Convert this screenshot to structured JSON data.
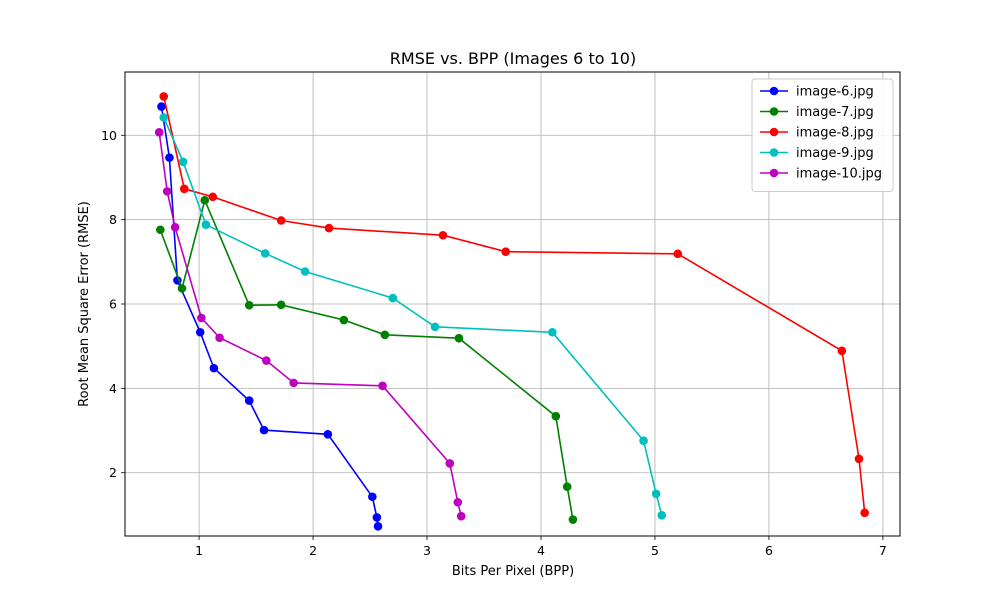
{
  "chart_data": {
    "type": "line",
    "title": "RMSE vs. BPP (Images 6 to 10)",
    "xlabel": "Bits Per Pixel (BPP)",
    "ylabel": "Root Mean Square Error (RMSE)",
    "xlim": [
      0.35,
      7.15
    ],
    "ylim": [
      0.5,
      11.5
    ],
    "xticks": [
      1,
      2,
      3,
      4,
      5,
      6,
      7
    ],
    "yticks": [
      2,
      4,
      6,
      8,
      10
    ],
    "grid": true,
    "legend_position": "top-right",
    "series": [
      {
        "name": "image-6.jpg",
        "color": "#0000ff",
        "x": [
          0.67,
          0.74,
          0.81,
          1.01,
          1.13,
          1.44,
          1.57,
          2.13,
          2.52,
          2.56,
          2.57
        ],
        "y": [
          10.68,
          9.47,
          6.56,
          5.33,
          4.48,
          3.71,
          3.01,
          2.91,
          1.43,
          0.94,
          0.73
        ]
      },
      {
        "name": "image-7.jpg",
        "color": "#008000",
        "x": [
          0.66,
          0.85,
          1.05,
          1.44,
          1.72,
          2.27,
          2.63,
          3.28,
          4.13,
          4.23,
          4.28
        ],
        "y": [
          7.76,
          6.37,
          8.46,
          5.97,
          5.98,
          5.62,
          5.27,
          5.19,
          3.34,
          1.67,
          0.89
        ]
      },
      {
        "name": "image-8.jpg",
        "color": "#ff0000",
        "x": [
          0.69,
          0.87,
          1.12,
          1.72,
          2.14,
          3.14,
          3.69,
          5.2,
          6.64,
          6.79,
          6.84
        ],
        "y": [
          10.92,
          8.73,
          8.54,
          7.98,
          7.8,
          7.63,
          7.24,
          7.19,
          4.89,
          2.33,
          1.05
        ]
      },
      {
        "name": "image-9.jpg",
        "color": "#00bfbf",
        "x": [
          0.69,
          0.86,
          1.06,
          1.58,
          1.93,
          2.7,
          3.07,
          4.1,
          4.9,
          5.01,
          5.06
        ],
        "y": [
          10.42,
          9.37,
          7.88,
          7.2,
          6.77,
          6.14,
          5.46,
          5.33,
          2.76,
          1.5,
          0.99
        ]
      },
      {
        "name": "image-10.jpg",
        "color": "#bf00bf",
        "x": [
          0.65,
          0.72,
          0.79,
          1.02,
          1.18,
          1.59,
          1.83,
          2.61,
          3.2,
          3.27,
          3.3
        ],
        "y": [
          10.07,
          8.67,
          7.82,
          5.67,
          5.2,
          4.66,
          4.13,
          4.06,
          2.22,
          1.3,
          0.97
        ]
      }
    ]
  }
}
